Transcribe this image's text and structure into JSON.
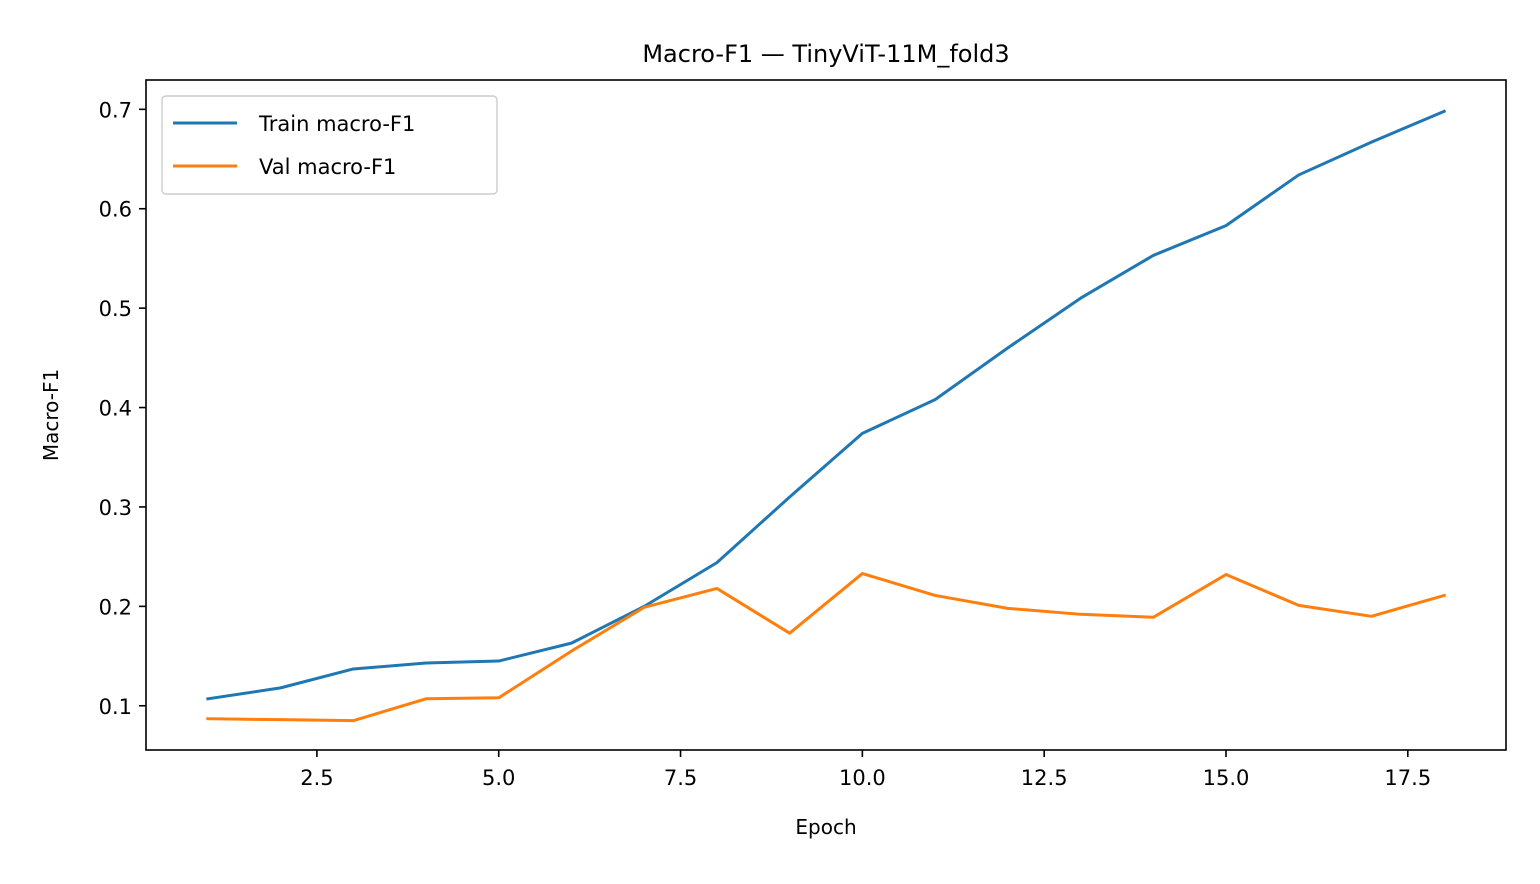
{
  "chart_data": {
    "type": "line",
    "title": "Macro-F1 — TinyViT-11M_fold3",
    "xlabel": "Epoch",
    "ylabel": "Macro-F1",
    "xlim": [
      0.15,
      18.85
    ],
    "ylim": [
      0.0555,
      0.7295
    ],
    "xticks": [
      2.5,
      5.0,
      7.5,
      10.0,
      12.5,
      15.0,
      17.5
    ],
    "xtick_labels": [
      "2.5",
      "5.0",
      "7.5",
      "10.0",
      "12.5",
      "15.0",
      "17.5"
    ],
    "yticks": [
      0.1,
      0.2,
      0.3,
      0.4,
      0.5,
      0.6,
      0.7
    ],
    "ytick_labels": [
      "0.1",
      "0.2",
      "0.3",
      "0.4",
      "0.5",
      "0.6",
      "0.7"
    ],
    "grid": false,
    "legend_position": "upper-left",
    "x": [
      1,
      2,
      3,
      4,
      5,
      6,
      7,
      8,
      9,
      10,
      11,
      12,
      13,
      14,
      15,
      16,
      17,
      18
    ],
    "series": [
      {
        "name": "Train macro-F1",
        "color": "#1f77b4",
        "values": [
          0.107,
          0.118,
          0.137,
          0.143,
          0.145,
          0.163,
          0.2,
          0.244,
          0.31,
          0.374,
          0.408,
          0.46,
          0.51,
          0.553,
          0.583,
          0.634,
          0.667,
          0.698
        ]
      },
      {
        "name": "Val macro-F1",
        "color": "#ff7f0e",
        "values": [
          0.087,
          0.086,
          0.085,
          0.107,
          0.108,
          0.155,
          0.199,
          0.218,
          0.173,
          0.233,
          0.211,
          0.198,
          0.192,
          0.189,
          0.232,
          0.201,
          0.19,
          0.211
        ]
      }
    ]
  }
}
